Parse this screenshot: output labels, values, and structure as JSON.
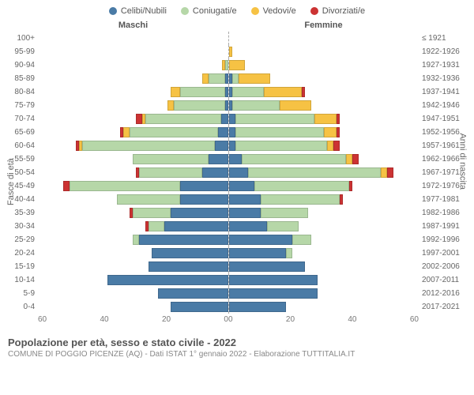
{
  "chart": {
    "type": "population-pyramid",
    "title": "Popolazione per età, sesso e stato civile - 2022",
    "subtitle": "COMUNE DI POGGIO PICENZE (AQ) - Dati ISTAT 1° gennaio 2022 - Elaborazione TUTTITALIA.IT",
    "legend": [
      {
        "label": "Celibi/Nubili",
        "color": "#4a7ba6"
      },
      {
        "label": "Coniugati/e",
        "color": "#b6d7a8"
      },
      {
        "label": "Vedovi/e",
        "color": "#f6c244"
      },
      {
        "label": "Divorziati/e",
        "color": "#cc3333"
      }
    ],
    "header_male": "Maschi",
    "header_female": "Femmine",
    "y_label_left": "Fasce di età",
    "y_label_right": "Anni di nascita",
    "x_max": 60,
    "x_ticks_left": [
      "60",
      "40",
      "20",
      "0"
    ],
    "x_ticks_right": [
      "0",
      "20",
      "40",
      "60"
    ],
    "colors": {
      "single": "#4a7ba6",
      "married": "#b6d7a8",
      "widowed": "#f6c244",
      "divorced": "#cc3333",
      "grid": "#dddddd",
      "center": "#aaaaaa",
      "bg": "#ffffff"
    },
    "rows": [
      {
        "age": "100+",
        "birth": "≤ 1921",
        "m": {
          "single": 0,
          "married": 0,
          "widowed": 0,
          "divorced": 0
        },
        "f": {
          "single": 0,
          "married": 0,
          "widowed": 0,
          "divorced": 0
        }
      },
      {
        "age": "95-99",
        "birth": "1922-1926",
        "m": {
          "single": 0,
          "married": 0,
          "widowed": 0,
          "divorced": 0
        },
        "f": {
          "single": 0,
          "married": 0,
          "widowed": 1,
          "divorced": 0
        }
      },
      {
        "age": "90-94",
        "birth": "1927-1931",
        "m": {
          "single": 0,
          "married": 1,
          "widowed": 1,
          "divorced": 0
        },
        "f": {
          "single": 0,
          "married": 0,
          "widowed": 5,
          "divorced": 0
        }
      },
      {
        "age": "85-89",
        "birth": "1932-1936",
        "m": {
          "single": 1,
          "married": 5,
          "widowed": 2,
          "divorced": 0
        },
        "f": {
          "single": 1,
          "married": 2,
          "widowed": 10,
          "divorced": 0
        }
      },
      {
        "age": "80-84",
        "birth": "1937-1941",
        "m": {
          "single": 1,
          "married": 14,
          "widowed": 3,
          "divorced": 0
        },
        "f": {
          "single": 1,
          "married": 10,
          "widowed": 12,
          "divorced": 1
        }
      },
      {
        "age": "75-79",
        "birth": "1942-1946",
        "m": {
          "single": 1,
          "married": 16,
          "widowed": 2,
          "divorced": 0
        },
        "f": {
          "single": 1,
          "married": 15,
          "widowed": 10,
          "divorced": 0
        }
      },
      {
        "age": "70-74",
        "birth": "1947-1951",
        "m": {
          "single": 2,
          "married": 24,
          "widowed": 1,
          "divorced": 2
        },
        "f": {
          "single": 2,
          "married": 25,
          "widowed": 7,
          "divorced": 1
        }
      },
      {
        "age": "65-69",
        "birth": "1952-1956",
        "m": {
          "single": 3,
          "married": 28,
          "widowed": 2,
          "divorced": 1
        },
        "f": {
          "single": 2,
          "married": 28,
          "widowed": 4,
          "divorced": 1
        }
      },
      {
        "age": "60-64",
        "birth": "1957-1961",
        "m": {
          "single": 4,
          "married": 42,
          "widowed": 1,
          "divorced": 1
        },
        "f": {
          "single": 2,
          "married": 29,
          "widowed": 2,
          "divorced": 2
        }
      },
      {
        "age": "55-59",
        "birth": "1962-1966",
        "m": {
          "single": 6,
          "married": 24,
          "widowed": 0,
          "divorced": 0
        },
        "f": {
          "single": 4,
          "married": 33,
          "widowed": 2,
          "divorced": 2
        }
      },
      {
        "age": "50-54",
        "birth": "1967-1971",
        "m": {
          "single": 8,
          "married": 20,
          "widowed": 0,
          "divorced": 1
        },
        "f": {
          "single": 6,
          "married": 42,
          "widowed": 2,
          "divorced": 2
        }
      },
      {
        "age": "45-49",
        "birth": "1972-1976",
        "m": {
          "single": 15,
          "married": 35,
          "widowed": 0,
          "divorced": 2
        },
        "f": {
          "single": 8,
          "married": 30,
          "widowed": 0,
          "divorced": 1
        }
      },
      {
        "age": "40-44",
        "birth": "1977-1981",
        "m": {
          "single": 15,
          "married": 20,
          "widowed": 0,
          "divorced": 0
        },
        "f": {
          "single": 10,
          "married": 25,
          "widowed": 0,
          "divorced": 1
        }
      },
      {
        "age": "35-39",
        "birth": "1982-1986",
        "m": {
          "single": 18,
          "married": 12,
          "widowed": 0,
          "divorced": 1
        },
        "f": {
          "single": 10,
          "married": 15,
          "widowed": 0,
          "divorced": 0
        }
      },
      {
        "age": "30-34",
        "birth": "1987-1991",
        "m": {
          "single": 20,
          "married": 5,
          "widowed": 0,
          "divorced": 1
        },
        "f": {
          "single": 12,
          "married": 10,
          "widowed": 0,
          "divorced": 0
        }
      },
      {
        "age": "25-29",
        "birth": "1992-1996",
        "m": {
          "single": 28,
          "married": 2,
          "widowed": 0,
          "divorced": 0
        },
        "f": {
          "single": 20,
          "married": 6,
          "widowed": 0,
          "divorced": 0
        }
      },
      {
        "age": "20-24",
        "birth": "1997-2001",
        "m": {
          "single": 24,
          "married": 0,
          "widowed": 0,
          "divorced": 0
        },
        "f": {
          "single": 18,
          "married": 2,
          "widowed": 0,
          "divorced": 0
        }
      },
      {
        "age": "15-19",
        "birth": "2002-2006",
        "m": {
          "single": 25,
          "married": 0,
          "widowed": 0,
          "divorced": 0
        },
        "f": {
          "single": 24,
          "married": 0,
          "widowed": 0,
          "divorced": 0
        }
      },
      {
        "age": "10-14",
        "birth": "2007-2011",
        "m": {
          "single": 38,
          "married": 0,
          "widowed": 0,
          "divorced": 0
        },
        "f": {
          "single": 28,
          "married": 0,
          "widowed": 0,
          "divorced": 0
        }
      },
      {
        "age": "5-9",
        "birth": "2012-2016",
        "m": {
          "single": 22,
          "married": 0,
          "widowed": 0,
          "divorced": 0
        },
        "f": {
          "single": 28,
          "married": 0,
          "widowed": 0,
          "divorced": 0
        }
      },
      {
        "age": "0-4",
        "birth": "2017-2021",
        "m": {
          "single": 18,
          "married": 0,
          "widowed": 0,
          "divorced": 0
        },
        "f": {
          "single": 18,
          "married": 0,
          "widowed": 0,
          "divorced": 0
        }
      }
    ]
  }
}
